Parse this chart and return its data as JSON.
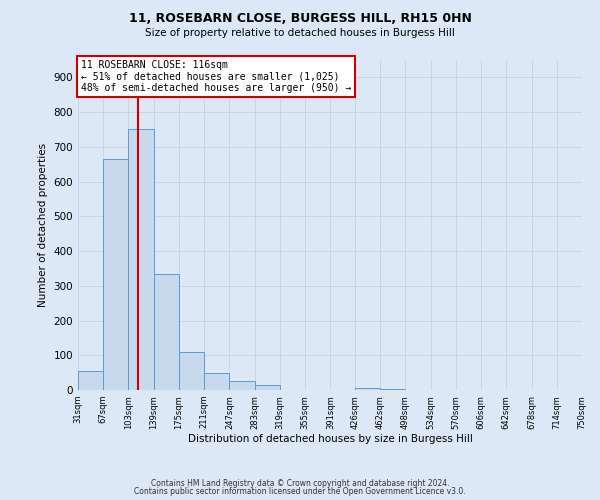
{
  "title1": "11, ROSEBARN CLOSE, BURGESS HILL, RH15 0HN",
  "title2": "Size of property relative to detached houses in Burgess Hill",
  "xlabel": "Distribution of detached houses by size in Burgess Hill",
  "ylabel": "Number of detached properties",
  "bin_labels": [
    "31sqm",
    "67sqm",
    "103sqm",
    "139sqm",
    "175sqm",
    "211sqm",
    "247sqm",
    "283sqm",
    "319sqm",
    "355sqm",
    "391sqm",
    "426sqm",
    "462sqm",
    "498sqm",
    "534sqm",
    "570sqm",
    "606sqm",
    "642sqm",
    "678sqm",
    "714sqm",
    "750sqm"
  ],
  "bin_starts": [
    31,
    67,
    103,
    139,
    175,
    211,
    247,
    283,
    319,
    355,
    391,
    426,
    462,
    498,
    534,
    570,
    606,
    642,
    678,
    714
  ],
  "bin_width": 36,
  "bar_values": [
    55,
    665,
    750,
    335,
    110,
    50,
    27,
    15,
    0,
    0,
    0,
    7,
    3,
    0,
    0,
    0,
    0,
    0,
    0,
    0
  ],
  "bar_color": "#c8d9ee",
  "bar_edge_color": "#5b9bd5",
  "property_size": 116,
  "red_line_color": "#cc0000",
  "ylim_max": 950,
  "yticks": [
    0,
    100,
    200,
    300,
    400,
    500,
    600,
    700,
    800,
    900
  ],
  "annotation_title": "11 ROSEBARN CLOSE: 116sqm",
  "annotation_line1": "← 51% of detached houses are smaller (1,025)",
  "annotation_line2": "48% of semi-detached houses are larger (950) →",
  "annotation_box_bg": "#ffffff",
  "annotation_box_edge": "#cc0000",
  "grid_color": "#c8d4e8",
  "bg_color": "#dce8f6",
  "footer1": "Contains HM Land Registry data © Crown copyright and database right 2024.",
  "footer2": "Contains public sector information licensed under the Open Government Licence v3.0.",
  "xlim_min": 31,
  "xlim_max": 750
}
